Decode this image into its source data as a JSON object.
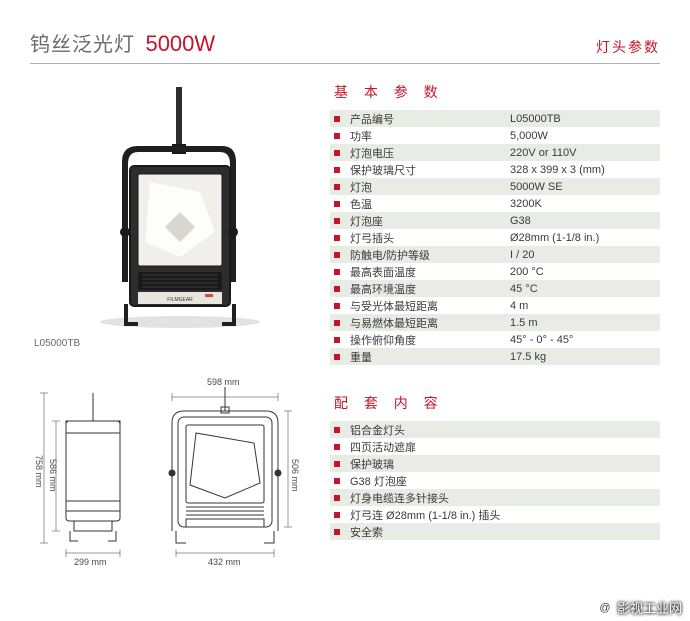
{
  "header": {
    "title": "钨丝泛光灯",
    "power": "5000W",
    "right": "灯头参数"
  },
  "model": "L05000TB",
  "sections": {
    "basic": {
      "title": "基 本 参 数",
      "rows": [
        {
          "label": "产品编号",
          "value": "L05000TB"
        },
        {
          "label": "功率",
          "value": "5,000W"
        },
        {
          "label": "灯泡电压",
          "value": "220V or 110V"
        },
        {
          "label": "保护玻璃尺寸",
          "value": "328 x 399 x 3 (mm)"
        },
        {
          "label": "灯泡",
          "value": "5000W SE"
        },
        {
          "label": "色温",
          "value": "3200K"
        },
        {
          "label": "灯泡座",
          "value": "G38"
        },
        {
          "label": "灯弓插头",
          "value": "Ø28mm (1-1/8 in.)"
        },
        {
          "label": "防触电/防护等级",
          "value": "I / 20"
        },
        {
          "label": "最高表面温度",
          "value": "200 °C"
        },
        {
          "label": "最高环境温度",
          "value": "45 °C"
        },
        {
          "label": "与受光体最短距离",
          "value": "4 m"
        },
        {
          "label": "与易燃体最短距离",
          "value": "1.5 m"
        },
        {
          "label": "操作俯仰角度",
          "value": "45° - 0° - 45°"
        },
        {
          "label": "重量",
          "value": "17.5 kg"
        }
      ]
    },
    "contents": {
      "title": "配 套 内 容",
      "rows": [
        {
          "label": "铝合金灯头",
          "value": ""
        },
        {
          "label": "四页活动遮扉",
          "value": ""
        },
        {
          "label": "保护玻璃",
          "value": ""
        },
        {
          "label": "G38 灯泡座",
          "value": ""
        },
        {
          "label": "灯身电缆连多针接头",
          "value": ""
        },
        {
          "label": "灯弓连 Ø28mm (1-1/8 in.) 插头",
          "value": ""
        },
        {
          "label": "安全索",
          "value": ""
        }
      ]
    }
  },
  "dimensions": {
    "top_width": "598 mm",
    "side_height": "506 mm",
    "inner_height": "586 mm",
    "outer_height": "758 mm",
    "base_width": "299 mm",
    "front_width": "432 mm"
  },
  "colors": {
    "accent": "#c6152b",
    "row_alt": "#e8ece4",
    "text": "#3a3a3a",
    "title_gray": "#6a6a6a",
    "rule": "#b0b0b0"
  },
  "watermark": "影视工业网",
  "photo": {
    "body_fill": "#2d2d2d",
    "body_stroke": "#1a1a1a",
    "screen_fill": "#f0efe9",
    "highlight": "#ffffff",
    "yoke": "#1f1f1f",
    "badge": "#d44",
    "shadow": "#bcbcbc"
  }
}
